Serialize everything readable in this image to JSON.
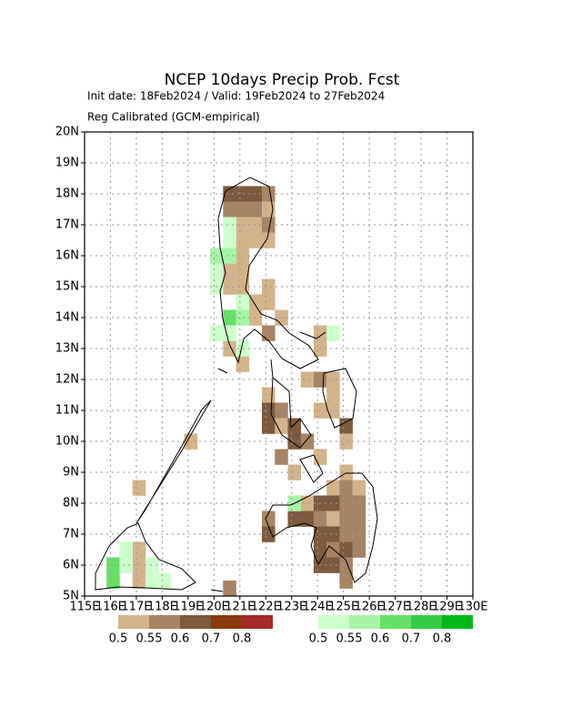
{
  "chart_data": {
    "type": "gridmap",
    "title": "NCEP 10days Precip Prob. Fcst",
    "subtitle": "Init date: 18Feb2024 / Valid: 19Feb2024 to 27Feb2024",
    "subtitle2": "Reg Calibrated (GCM-empirical)",
    "xlim": [
      115,
      130
    ],
    "ylim": [
      5,
      20
    ],
    "grid": true,
    "cell_size": 0.5,
    "xticks": [
      {
        "value": 115,
        "label": "115E"
      },
      {
        "value": 116,
        "label": "116E"
      },
      {
        "value": 117,
        "label": "117E"
      },
      {
        "value": 118,
        "label": "118E"
      },
      {
        "value": 119,
        "label": "119E"
      },
      {
        "value": 120,
        "label": "120E"
      },
      {
        "value": 121,
        "label": "121E"
      },
      {
        "value": 122,
        "label": "122E"
      },
      {
        "value": 123,
        "label": "123E"
      },
      {
        "value": 124,
        "label": "124E"
      },
      {
        "value": 125,
        "label": "125E"
      },
      {
        "value": 126,
        "label": "126E"
      },
      {
        "value": 127,
        "label": "127E"
      },
      {
        "value": 128,
        "label": "128E"
      },
      {
        "value": 129,
        "label": "129E"
      },
      {
        "value": 130,
        "label": "130E"
      }
    ],
    "yticks": [
      {
        "value": 5,
        "label": "5N"
      },
      {
        "value": 6,
        "label": "6N"
      },
      {
        "value": 7,
        "label": "7N"
      },
      {
        "value": 8,
        "label": "8N"
      },
      {
        "value": 9,
        "label": "9N"
      },
      {
        "value": 10,
        "label": "10N"
      },
      {
        "value": 11,
        "label": "11N"
      },
      {
        "value": 12,
        "label": "12N"
      },
      {
        "value": 13,
        "label": "13N"
      },
      {
        "value": 14,
        "label": "14N"
      },
      {
        "value": 15,
        "label": "15N"
      },
      {
        "value": 16,
        "label": "16N"
      },
      {
        "value": 17,
        "label": "17N"
      },
      {
        "value": 18,
        "label": "18N"
      },
      {
        "value": 19,
        "label": "19N"
      },
      {
        "value": 20,
        "label": "20N"
      }
    ],
    "dry_scale": {
      "levels": [
        0.5,
        0.55,
        0.6,
        0.7,
        0.8
      ],
      "colors": [
        "#d2b48c",
        "#a58465",
        "#7b5a3f",
        "#8b3a0f",
        "#a52a2a"
      ]
    },
    "wet_scale": {
      "levels": [
        0.5,
        0.55,
        0.6,
        0.7,
        0.8
      ],
      "colors": [
        "#ccffcc",
        "#a6f5a6",
        "#66e066",
        "#33cc44",
        "#00b818"
      ]
    },
    "dry_cells": [
      [
        120.6,
        18,
        0.6
      ],
      [
        121.1,
        18,
        0.6
      ],
      [
        121.6,
        18,
        0.6
      ],
      [
        122.1,
        18,
        0.55
      ],
      [
        120.6,
        17.5,
        0.55
      ],
      [
        121.1,
        17.5,
        0.55
      ],
      [
        121.6,
        17.5,
        0.55
      ],
      [
        122.1,
        17.5,
        0.5
      ],
      [
        121.1,
        17,
        0.5
      ],
      [
        121.6,
        17,
        0.5
      ],
      [
        122.1,
        17,
        0.55
      ],
      [
        121.1,
        16.5,
        0.5
      ],
      [
        121.6,
        16.5,
        0.5
      ],
      [
        122.1,
        16.5,
        0.5
      ],
      [
        121.1,
        16,
        0.5
      ],
      [
        120.6,
        15.5,
        0.5
      ],
      [
        121.1,
        15.5,
        0.5
      ],
      [
        120.6,
        15,
        0.5
      ],
      [
        121.1,
        15,
        0.5
      ],
      [
        122.1,
        15,
        0.5
      ],
      [
        121.6,
        14.5,
        0.5
      ],
      [
        122.1,
        14.5,
        0.5
      ],
      [
        121.6,
        14,
        0.5
      ],
      [
        122.6,
        14,
        0.5
      ],
      [
        122.1,
        13.5,
        0.55
      ],
      [
        124.1,
        13.5,
        0.5
      ],
      [
        120.6,
        13,
        0.5
      ],
      [
        124.1,
        13,
        0.5
      ],
      [
        121.1,
        12.5,
        0.5
      ],
      [
        123.6,
        12,
        0.5
      ],
      [
        124.1,
        12,
        0.55
      ],
      [
        124.6,
        12,
        0.5
      ],
      [
        122.1,
        11.5,
        0.5
      ],
      [
        124.6,
        11.5,
        0.5
      ],
      [
        122.1,
        11,
        0.6
      ],
      [
        122.6,
        11,
        0.55
      ],
      [
        124.1,
        11,
        0.5
      ],
      [
        124.6,
        11,
        0.5
      ],
      [
        122.1,
        10.5,
        0.6
      ],
      [
        122.6,
        10.5,
        0.5
      ],
      [
        123.1,
        10.5,
        0.6
      ],
      [
        125.1,
        10.5,
        0.6
      ],
      [
        123.1,
        10,
        0.6
      ],
      [
        123.6,
        10,
        0.55
      ],
      [
        125.1,
        10,
        0.5
      ],
      [
        119.1,
        10,
        0.5
      ],
      [
        122.6,
        9.5,
        0.55
      ],
      [
        124.1,
        9.5,
        0.5
      ],
      [
        123.1,
        9,
        0.5
      ],
      [
        125.1,
        9,
        0.5
      ],
      [
        117.1,
        8.5,
        0.5
      ],
      [
        124.6,
        8.5,
        0.5
      ],
      [
        125.1,
        8.5,
        0.55
      ],
      [
        125.6,
        8.5,
        0.5
      ],
      [
        123.6,
        8,
        0.5
      ],
      [
        124.1,
        8,
        0.6
      ],
      [
        124.6,
        8,
        0.6
      ],
      [
        125.1,
        8,
        0.55
      ],
      [
        125.6,
        8,
        0.55
      ],
      [
        122.1,
        7.5,
        0.55
      ],
      [
        123.1,
        7.5,
        0.6
      ],
      [
        123.6,
        7.5,
        0.6
      ],
      [
        124.1,
        7.5,
        0.55
      ],
      [
        124.6,
        7.5,
        0.5
      ],
      [
        125.1,
        7.5,
        0.55
      ],
      [
        125.6,
        7.5,
        0.55
      ],
      [
        122.1,
        7,
        0.6
      ],
      [
        124.1,
        7,
        0.6
      ],
      [
        124.6,
        7,
        0.6
      ],
      [
        125.1,
        7,
        0.55
      ],
      [
        125.6,
        7,
        0.55
      ],
      [
        117.1,
        6.5,
        0.5
      ],
      [
        124.1,
        6.5,
        0.6
      ],
      [
        124.6,
        6.5,
        0.55
      ],
      [
        125.1,
        6.5,
        0.6
      ],
      [
        125.6,
        6.5,
        0.55
      ],
      [
        117.1,
        6,
        0.5
      ],
      [
        124.1,
        6,
        0.6
      ],
      [
        124.6,
        6,
        0.6
      ],
      [
        125.1,
        6,
        0.55
      ],
      [
        117.1,
        5.5,
        0.5
      ],
      [
        125.1,
        5.5,
        0.55
      ],
      [
        120.6,
        5.25,
        0.55
      ]
    ],
    "wet_cells": [
      [
        120.6,
        17,
        0.5
      ],
      [
        120.6,
        16.5,
        0.5
      ],
      [
        120.1,
        16,
        0.55
      ],
      [
        120.6,
        16,
        0.55
      ],
      [
        120.1,
        15.5,
        0.5
      ],
      [
        120.1,
        15,
        0.5
      ],
      [
        121.1,
        14.5,
        0.5
      ],
      [
        120.6,
        14,
        0.6
      ],
      [
        121.1,
        14,
        0.55
      ],
      [
        120.1,
        13.5,
        0.5
      ],
      [
        120.6,
        13.5,
        0.5
      ],
      [
        124.6,
        13.5,
        0.5
      ],
      [
        121.1,
        13,
        0.5
      ],
      [
        123.1,
        8,
        0.55
      ],
      [
        116.6,
        6.5,
        0.5
      ],
      [
        116.1,
        6,
        0.6
      ],
      [
        116.6,
        6,
        0.5
      ],
      [
        117.6,
        6,
        0.5
      ],
      [
        116.1,
        5.5,
        0.6
      ],
      [
        117.6,
        5.5,
        0.5
      ],
      [
        118.1,
        5.5,
        0.5
      ]
    ]
  }
}
